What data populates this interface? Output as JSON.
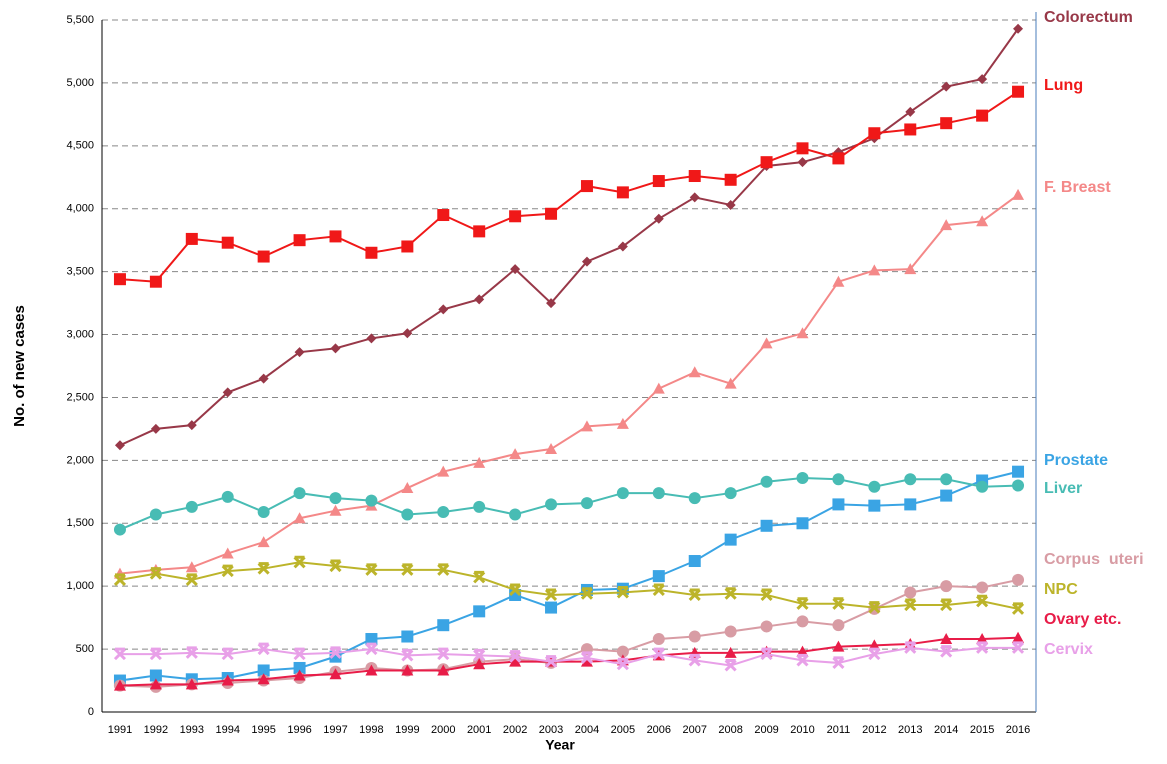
{
  "chart_data": {
    "type": "line",
    "x_label": "Year",
    "y_label": "No. of new cases",
    "categories": [
      "1991",
      "1992",
      "1993",
      "1994",
      "1995",
      "1996",
      "1997",
      "1998",
      "1999",
      "2000",
      "2001",
      "2002",
      "2003",
      "2004",
      "2005",
      "2006",
      "2007",
      "2008",
      "2009",
      "2010",
      "2011",
      "2012",
      "2013",
      "2014",
      "2015",
      "2016"
    ],
    "ylim": [
      0,
      5500
    ],
    "yticks": [
      0,
      500,
      {
        "value": 1000,
        "label": "1,000"
      },
      {
        "value": 1500,
        "label": "1,500"
      },
      {
        "value": 2000,
        "label": "2,000"
      },
      {
        "value": 2500,
        "label": "2,500"
      },
      {
        "value": 3000,
        "label": "3,000"
      },
      {
        "value": 3500,
        "label": "3,500"
      },
      {
        "value": 4000,
        "label": "4,000"
      },
      {
        "value": 4500,
        "label": "4,500"
      },
      {
        "value": 5000,
        "label": "5,000"
      },
      {
        "value": 5500,
        "label": "5,500"
      }
    ],
    "grid": true,
    "series": [
      {
        "name": "Colorectum",
        "color": "#983848",
        "marker": "diamond",
        "values": [
          2120,
          2250,
          2280,
          2540,
          2650,
          2860,
          2890,
          2970,
          3010,
          3200,
          3280,
          3520,
          3250,
          3580,
          3700,
          3920,
          4090,
          4030,
          4340,
          4370,
          4450,
          4560,
          4770,
          4970,
          5030,
          5430
        ]
      },
      {
        "name": "Lung",
        "color": "#f01818",
        "marker": "square",
        "values": [
          3440,
          3420,
          3760,
          3730,
          3620,
          3750,
          3780,
          3650,
          3700,
          3950,
          3820,
          3940,
          3960,
          4180,
          4130,
          4220,
          4260,
          4230,
          4370,
          4480,
          4400,
          4600,
          4630,
          4680,
          4740,
          4930
        ]
      },
      {
        "name": "F. Breast",
        "color": "#f48888",
        "marker": "triangle",
        "values": [
          1100,
          1130,
          1150,
          1260,
          1350,
          1540,
          1600,
          1640,
          1780,
          1910,
          1980,
          2050,
          2090,
          2270,
          2290,
          2570,
          2700,
          2610,
          2930,
          3010,
          3420,
          3510,
          3520,
          3870,
          3900,
          4110
        ]
      },
      {
        "name": "Prostate",
        "color": "#3aa4e4",
        "marker": "square",
        "values": [
          250,
          290,
          260,
          270,
          330,
          350,
          440,
          580,
          600,
          690,
          800,
          930,
          830,
          970,
          980,
          1080,
          1200,
          1370,
          1480,
          1500,
          1650,
          1640,
          1650,
          1720,
          1840,
          1910
        ]
      },
      {
        "name": "Liver",
        "color": "#48bcb4",
        "marker": "circle",
        "values": [
          1450,
          1570,
          1630,
          1710,
          1590,
          1740,
          1700,
          1680,
          1570,
          1590,
          1630,
          1570,
          1650,
          1660,
          1740,
          1740,
          1700,
          1740,
          1830,
          1860,
          1850,
          1790,
          1850,
          1850,
          1790,
          1800
        ]
      },
      {
        "name": "Corpus  uteri",
        "color": "#d89ca4",
        "marker": "circle",
        "values": [
          210,
          200,
          220,
          230,
          250,
          270,
          320,
          350,
          330,
          340,
          400,
          420,
          390,
          500,
          480,
          580,
          600,
          640,
          680,
          720,
          690,
          820,
          950,
          1000,
          990,
          1050
        ]
      },
      {
        "name": "NPC",
        "color": "#bcb42a",
        "marker": "cross",
        "values": [
          1050,
          1100,
          1050,
          1120,
          1140,
          1190,
          1160,
          1130,
          1130,
          1130,
          1070,
          970,
          930,
          940,
          950,
          970,
          930,
          940,
          930,
          860,
          860,
          830,
          850,
          850,
          880,
          820
        ]
      },
      {
        "name": "Ovary etc.",
        "color": "#e81c48",
        "marker": "triangle",
        "values": [
          210,
          220,
          220,
          250,
          260,
          290,
          300,
          330,
          330,
          330,
          380,
          400,
          400,
          400,
          410,
          450,
          470,
          470,
          480,
          480,
          520,
          530,
          540,
          580,
          580,
          590
        ]
      },
      {
        "name": "Cervix",
        "color": "#e8a0e8",
        "marker": "cross",
        "values": [
          460,
          460,
          470,
          460,
          500,
          460,
          470,
          500,
          450,
          460,
          450,
          440,
          400,
          430,
          380,
          460,
          410,
          370,
          460,
          410,
          390,
          460,
          510,
          480,
          510,
          510
        ]
      }
    ]
  }
}
